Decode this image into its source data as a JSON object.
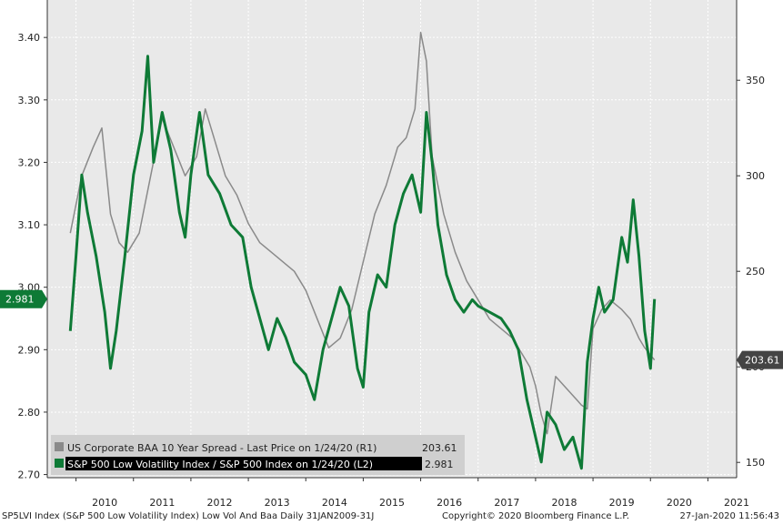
{
  "chart_data": {
    "type": "line",
    "x_tick_labels": [
      "2010",
      "2011",
      "2012",
      "2013",
      "2014",
      "2015",
      "2016",
      "2017",
      "2018",
      "2019",
      "2020",
      "2021"
    ],
    "left_axis": {
      "ticks": [
        "2.70",
        "2.80",
        "2.90",
        "3.00",
        "3.10",
        "3.20",
        "3.30",
        "3.40"
      ],
      "range": [
        2.695,
        3.46
      ]
    },
    "right_axis": {
      "ticks": [
        "150",
        "200",
        "250",
        "300",
        "350"
      ],
      "range": [
        142,
        392
      ]
    },
    "series": [
      {
        "name": "US Corporate BAA 10 Year Spread - Last Price on 1/24/20 (R1)",
        "last_value": "203.61",
        "axis": "right",
        "color": "#8a8a8a",
        "points": [
          [
            2009.9,
            270
          ],
          [
            2010.1,
            300
          ],
          [
            2010.3,
            315
          ],
          [
            2010.45,
            325
          ],
          [
            2010.6,
            280
          ],
          [
            2010.75,
            265
          ],
          [
            2010.9,
            260
          ],
          [
            2011.1,
            270
          ],
          [
            2011.3,
            300
          ],
          [
            2011.5,
            330
          ],
          [
            2011.7,
            315
          ],
          [
            2011.9,
            300
          ],
          [
            2012.1,
            310
          ],
          [
            2012.25,
            335
          ],
          [
            2012.4,
            320
          ],
          [
            2012.6,
            300
          ],
          [
            2012.8,
            290
          ],
          [
            2013.0,
            275
          ],
          [
            2013.2,
            265
          ],
          [
            2013.4,
            260
          ],
          [
            2013.6,
            255
          ],
          [
            2013.8,
            250
          ],
          [
            2014.0,
            240
          ],
          [
            2014.2,
            225
          ],
          [
            2014.4,
            210
          ],
          [
            2014.6,
            215
          ],
          [
            2014.8,
            230
          ],
          [
            2015.0,
            255
          ],
          [
            2015.2,
            280
          ],
          [
            2015.4,
            295
          ],
          [
            2015.6,
            315
          ],
          [
            2015.75,
            320
          ],
          [
            2015.9,
            335
          ],
          [
            2016.0,
            375
          ],
          [
            2016.1,
            360
          ],
          [
            2016.2,
            310
          ],
          [
            2016.4,
            280
          ],
          [
            2016.6,
            260
          ],
          [
            2016.8,
            245
          ],
          [
            2017.0,
            235
          ],
          [
            2017.2,
            225
          ],
          [
            2017.4,
            220
          ],
          [
            2017.6,
            215
          ],
          [
            2017.8,
            205
          ],
          [
            2017.9,
            200
          ],
          [
            2018.0,
            190
          ],
          [
            2018.1,
            175
          ],
          [
            2018.2,
            165
          ],
          [
            2018.35,
            195
          ],
          [
            2018.5,
            190
          ],
          [
            2018.65,
            185
          ],
          [
            2018.8,
            180
          ],
          [
            2018.9,
            178
          ],
          [
            2019.0,
            220
          ],
          [
            2019.15,
            230
          ],
          [
            2019.3,
            235
          ],
          [
            2019.5,
            230
          ],
          [
            2019.65,
            225
          ],
          [
            2019.8,
            215
          ],
          [
            2019.9,
            210
          ],
          [
            2020.07,
            203.61
          ]
        ]
      },
      {
        "name": "S&P 500 Low Volatility Index / S&P 500 Index on 1/24/20 (L2)",
        "last_value": "2.981",
        "axis": "left",
        "color": "#0e7a36",
        "points": [
          [
            2009.9,
            2.93
          ],
          [
            2010.0,
            3.05
          ],
          [
            2010.1,
            3.18
          ],
          [
            2010.2,
            3.12
          ],
          [
            2010.35,
            3.05
          ],
          [
            2010.5,
            2.96
          ],
          [
            2010.6,
            2.87
          ],
          [
            2010.7,
            2.93
          ],
          [
            2010.85,
            3.05
          ],
          [
            2011.0,
            3.18
          ],
          [
            2011.15,
            3.25
          ],
          [
            2011.25,
            3.37
          ],
          [
            2011.35,
            3.2
          ],
          [
            2011.5,
            3.28
          ],
          [
            2011.65,
            3.22
          ],
          [
            2011.8,
            3.12
          ],
          [
            2011.9,
            3.08
          ],
          [
            2012.0,
            3.18
          ],
          [
            2012.15,
            3.28
          ],
          [
            2012.3,
            3.18
          ],
          [
            2012.5,
            3.15
          ],
          [
            2012.7,
            3.1
          ],
          [
            2012.9,
            3.08
          ],
          [
            2013.05,
            3.0
          ],
          [
            2013.2,
            2.95
          ],
          [
            2013.35,
            2.9
          ],
          [
            2013.5,
            2.95
          ],
          [
            2013.65,
            2.92
          ],
          [
            2013.8,
            2.88
          ],
          [
            2014.0,
            2.86
          ],
          [
            2014.15,
            2.82
          ],
          [
            2014.3,
            2.9
          ],
          [
            2014.45,
            2.95
          ],
          [
            2014.6,
            3.0
          ],
          [
            2014.75,
            2.97
          ],
          [
            2014.9,
            2.87
          ],
          [
            2015.0,
            2.84
          ],
          [
            2015.1,
            2.96
          ],
          [
            2015.25,
            3.02
          ],
          [
            2015.4,
            3.0
          ],
          [
            2015.55,
            3.1
          ],
          [
            2015.7,
            3.15
          ],
          [
            2015.85,
            3.18
          ],
          [
            2016.0,
            3.12
          ],
          [
            2016.1,
            3.28
          ],
          [
            2016.2,
            3.2
          ],
          [
            2016.3,
            3.1
          ],
          [
            2016.45,
            3.02
          ],
          [
            2016.6,
            2.98
          ],
          [
            2016.75,
            2.96
          ],
          [
            2016.9,
            2.98
          ],
          [
            2017.0,
            2.97
          ],
          [
            2017.2,
            2.96
          ],
          [
            2017.4,
            2.95
          ],
          [
            2017.55,
            2.93
          ],
          [
            2017.7,
            2.9
          ],
          [
            2017.85,
            2.82
          ],
          [
            2018.0,
            2.76
          ],
          [
            2018.1,
            2.72
          ],
          [
            2018.2,
            2.8
          ],
          [
            2018.35,
            2.78
          ],
          [
            2018.5,
            2.74
          ],
          [
            2018.65,
            2.76
          ],
          [
            2018.8,
            2.71
          ],
          [
            2018.9,
            2.88
          ],
          [
            2019.0,
            2.95
          ],
          [
            2019.1,
            3.0
          ],
          [
            2019.2,
            2.96
          ],
          [
            2019.35,
            2.98
          ],
          [
            2019.5,
            3.08
          ],
          [
            2019.6,
            3.04
          ],
          [
            2019.7,
            3.14
          ],
          [
            2019.8,
            3.05
          ],
          [
            2019.9,
            2.93
          ],
          [
            2020.0,
            2.87
          ],
          [
            2020.07,
            2.981
          ]
        ]
      }
    ],
    "legend_position": "bottom-left",
    "grid": true
  },
  "footer": {
    "left": "SP5LVI Index (S&P 500 Low Volatility Index) Low Vol And Baa  Daily 31JAN2009-31J",
    "center": "Copyright© 2020 Bloomberg Finance L.P.",
    "right": "27-Jan-2020 11:56:43"
  }
}
